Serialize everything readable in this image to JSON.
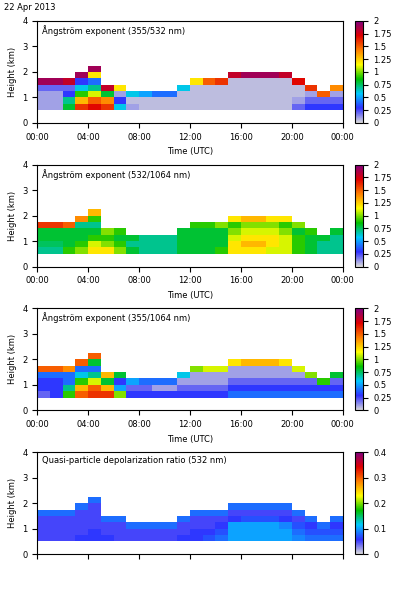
{
  "title": "22 Apr 2013",
  "chart_data": [
    {
      "type": "heatmap",
      "title": "Ångström exponent (355/532 nm)",
      "xlabel": "Time (UTC)",
      "ylabel": "Height (km)",
      "xlim": [
        0,
        24
      ],
      "ylim": [
        0,
        4
      ],
      "xticks": [
        {
          "value": 0,
          "label": "00:00"
        },
        {
          "value": 4,
          "label": "04:00"
        },
        {
          "value": 8,
          "label": "08:00"
        },
        {
          "value": 12,
          "label": "12:00"
        },
        {
          "value": 16,
          "label": "16:00"
        },
        {
          "value": 20,
          "label": "20:00"
        },
        {
          "value": 24,
          "label": "00:00"
        }
      ],
      "yticks": [
        0,
        1,
        2,
        3,
        4
      ],
      "x_edges": [
        0,
        1,
        2,
        3,
        4,
        5,
        6,
        7,
        8,
        9,
        10,
        11,
        12,
        13,
        14,
        15,
        16,
        17,
        18,
        19,
        20,
        21,
        22,
        23,
        24
      ],
      "y_edges": [
        0.5,
        0.75,
        1.0,
        1.25,
        1.5,
        1.75,
        2.0,
        2.25,
        2.5
      ],
      "colorbar": {
        "range": [
          0,
          2
        ],
        "ticks": [
          0,
          0.25,
          0.5,
          0.75,
          1,
          1.25,
          1.5,
          1.75,
          2
        ]
      },
      "cells": [
        [
          0.1,
          0.1,
          0.1,
          0.2,
          1.9,
          null,
          null,
          null
        ],
        [
          0.1,
          0.1,
          0.1,
          0.2,
          1.9,
          null,
          null,
          null
        ],
        [
          0.8,
          0.7,
          0.3,
          0.2,
          1.8,
          null,
          null,
          null
        ],
        [
          1.6,
          1.3,
          0.9,
          0.6,
          0.3,
          1.9,
          null,
          null
        ],
        [
          1.7,
          1.5,
          1.1,
          0.7,
          0.4,
          1.2,
          1.9,
          null
        ],
        [
          1.6,
          1.4,
          0.8,
          1.8,
          null,
          null,
          null,
          null
        ],
        [
          0.6,
          0.3,
          0.1,
          1.2,
          null,
          null,
          null,
          null
        ],
        [
          0.1,
          0.05,
          0.6,
          null,
          null,
          null,
          null,
          null
        ],
        [
          0.05,
          0.05,
          0.5,
          null,
          null,
          null,
          null,
          null
        ],
        [
          0.05,
          0.05,
          0.4,
          null,
          null,
          null,
          null,
          null
        ],
        [
          0.05,
          0.05,
          0.4,
          null,
          null,
          null,
          null,
          null
        ],
        [
          0.05,
          0.05,
          0.05,
          0.6,
          null,
          null,
          null,
          null
        ],
        [
          0.05,
          0.05,
          0.05,
          0.05,
          1.2,
          null,
          null,
          null
        ],
        [
          0.05,
          0.05,
          0.05,
          0.05,
          1.5,
          null,
          null,
          null
        ],
        [
          0.05,
          0.05,
          0.05,
          0.05,
          1.6,
          null,
          null,
          null
        ],
        [
          0.05,
          0.05,
          0.05,
          0.05,
          0.05,
          1.8,
          null,
          null
        ],
        [
          0.05,
          0.05,
          0.05,
          0.05,
          0.05,
          1.9,
          null,
          null
        ],
        [
          0.05,
          0.05,
          0.05,
          0.05,
          0.05,
          1.9,
          null,
          null
        ],
        [
          0.05,
          0.05,
          0.05,
          0.05,
          0.05,
          1.9,
          null,
          null
        ],
        [
          0.05,
          0.05,
          0.05,
          0.05,
          0.05,
          1.8,
          null,
          null
        ],
        [
          0.2,
          0.1,
          0.05,
          0.05,
          1.7,
          null,
          null,
          null
        ],
        [
          0.3,
          0.2,
          0.1,
          1.6,
          null,
          null,
          null,
          null
        ],
        [
          0.3,
          0.2,
          1.5,
          null,
          null,
          null,
          null,
          null
        ],
        [
          0.3,
          0.2,
          0.1,
          1.4,
          null,
          null,
          null,
          null
        ]
      ]
    },
    {
      "type": "heatmap",
      "title": "Ångström exponent (532/1064 nm)",
      "xlabel": "Time (UTC)",
      "ylabel": "Height (km)",
      "xlim": [
        0,
        24
      ],
      "ylim": [
        0,
        4
      ],
      "xticks": [
        {
          "value": 0,
          "label": "00:00"
        },
        {
          "value": 4,
          "label": "04:00"
        },
        {
          "value": 8,
          "label": "08:00"
        },
        {
          "value": 12,
          "label": "12:00"
        },
        {
          "value": 16,
          "label": "16:00"
        },
        {
          "value": 20,
          "label": "20:00"
        },
        {
          "value": 24,
          "label": "00:00"
        }
      ],
      "yticks": [
        0,
        1,
        2,
        3,
        4
      ],
      "x_edges": [
        0,
        1,
        2,
        3,
        4,
        5,
        6,
        7,
        8,
        9,
        10,
        11,
        12,
        13,
        14,
        15,
        16,
        17,
        18,
        19,
        20,
        21,
        22,
        23,
        24
      ],
      "y_edges": [
        0.5,
        0.75,
        1.0,
        1.25,
        1.5,
        1.75,
        2.0,
        2.25,
        2.5
      ],
      "colorbar": {
        "range": [
          0,
          2
        ],
        "ticks": [
          0,
          0.25,
          0.5,
          0.75,
          1,
          1.25,
          1.5,
          1.75,
          2
        ]
      },
      "cells": [
        [
          0.7,
          0.75,
          0.8,
          0.8,
          1.6,
          null,
          null,
          null
        ],
        [
          0.7,
          0.75,
          0.8,
          0.8,
          1.6,
          null,
          null,
          null
        ],
        [
          0.9,
          0.8,
          0.8,
          0.8,
          1.5,
          null,
          null,
          null
        ],
        [
          1.0,
          0.9,
          0.8,
          0.8,
          0.7,
          1.4,
          null,
          null
        ],
        [
          1.2,
          1.1,
          0.9,
          0.8,
          0.7,
          0.9,
          1.3,
          null
        ],
        [
          1.2,
          1.0,
          0.9,
          1.0,
          null,
          null,
          null,
          null
        ],
        [
          1.0,
          0.9,
          0.8,
          0.9,
          null,
          null,
          null,
          null
        ],
        [
          0.8,
          0.7,
          0.8,
          null,
          null,
          null,
          null,
          null
        ],
        [
          0.7,
          0.7,
          0.7,
          null,
          null,
          null,
          null,
          null
        ],
        [
          0.7,
          0.7,
          0.7,
          null,
          null,
          null,
          null,
          null
        ],
        [
          0.7,
          0.7,
          0.7,
          null,
          null,
          null,
          null,
          null
        ],
        [
          0.8,
          0.8,
          0.8,
          0.8,
          null,
          null,
          null,
          null
        ],
        [
          0.8,
          0.8,
          0.8,
          0.8,
          0.9,
          null,
          null,
          null
        ],
        [
          0.8,
          0.8,
          0.8,
          0.8,
          0.9,
          null,
          null,
          null
        ],
        [
          0.9,
          0.8,
          0.8,
          0.8,
          1.0,
          null,
          null,
          null
        ],
        [
          1.2,
          1.2,
          1.1,
          1.0,
          0.9,
          1.2,
          null,
          null
        ],
        [
          1.2,
          1.3,
          1.2,
          1.1,
          1.0,
          1.3,
          null,
          null
        ],
        [
          1.2,
          1.3,
          1.2,
          1.1,
          1.0,
          1.3,
          null,
          null
        ],
        [
          1.1,
          1.2,
          1.2,
          1.1,
          1.0,
          1.2,
          null,
          null
        ],
        [
          1.1,
          1.1,
          1.1,
          1.0,
          0.9,
          1.2,
          null,
          null
        ],
        [
          0.9,
          0.9,
          0.9,
          0.8,
          1.0,
          null,
          null,
          null
        ],
        [
          0.8,
          0.8,
          0.8,
          0.9,
          null,
          null,
          null,
          null
        ],
        [
          0.7,
          0.7,
          0.8,
          null,
          null,
          null,
          null,
          null
        ],
        [
          0.7,
          0.7,
          0.7,
          0.8,
          null,
          null,
          null,
          null
        ]
      ]
    },
    {
      "type": "heatmap",
      "title": "Ångström exponent (355/1064 nm)",
      "xlabel": "Time (UTC)",
      "ylabel": "Height (km)",
      "xlim": [
        0,
        24
      ],
      "ylim": [
        0,
        4
      ],
      "xticks": [
        {
          "value": 0,
          "label": "00:00"
        },
        {
          "value": 4,
          "label": "04:00"
        },
        {
          "value": 8,
          "label": "08:00"
        },
        {
          "value": 12,
          "label": "12:00"
        },
        {
          "value": 16,
          "label": "16:00"
        },
        {
          "value": 20,
          "label": "20:00"
        },
        {
          "value": 24,
          "label": "00:00"
        }
      ],
      "yticks": [
        0,
        1,
        2,
        3,
        4
      ],
      "x_edges": [
        0,
        1,
        2,
        3,
        4,
        5,
        6,
        7,
        8,
        9,
        10,
        11,
        12,
        13,
        14,
        15,
        16,
        17,
        18,
        19,
        20,
        21,
        22,
        23,
        24
      ],
      "y_edges": [
        0.5,
        0.75,
        1.0,
        1.25,
        1.5,
        1.75,
        2.0,
        2.25,
        2.5
      ],
      "colorbar": {
        "range": [
          0,
          2
        ],
        "ticks": [
          0,
          0.25,
          0.5,
          0.75,
          1,
          1.25,
          1.5,
          1.75,
          2
        ]
      },
      "cells": [
        [
          0.2,
          0.3,
          0.3,
          0.4,
          1.5,
          null,
          null,
          null
        ],
        [
          0.3,
          0.3,
          0.3,
          0.4,
          1.5,
          null,
          null,
          null
        ],
        [
          0.9,
          0.7,
          0.4,
          0.4,
          1.4,
          null,
          null,
          null
        ],
        [
          1.5,
          1.3,
          0.9,
          0.6,
          0.4,
          1.5,
          null,
          null
        ],
        [
          1.6,
          1.5,
          1.1,
          0.7,
          0.4,
          0.8,
          1.5,
          null
        ],
        [
          1.6,
          1.3,
          0.8,
          1.3,
          null,
          null,
          null,
          null
        ],
        [
          1.0,
          0.5,
          0.3,
          0.8,
          null,
          null,
          null,
          null
        ],
        [
          0.3,
          0.2,
          0.5,
          null,
          null,
          null,
          null,
          null
        ],
        [
          0.3,
          0.2,
          0.4,
          null,
          null,
          null,
          null,
          null
        ],
        [
          0.3,
          0.1,
          0.4,
          null,
          null,
          null,
          null,
          null
        ],
        [
          0.3,
          0.1,
          0.4,
          null,
          null,
          null,
          null,
          null
        ],
        [
          0.3,
          0.2,
          0.1,
          0.6,
          null,
          null,
          null,
          null
        ],
        [
          0.3,
          0.2,
          0.1,
          0.1,
          1.0,
          null,
          null,
          null
        ],
        [
          0.3,
          0.2,
          0.1,
          0.1,
          1.1,
          null,
          null,
          null
        ],
        [
          0.3,
          0.2,
          0.1,
          0.1,
          1.1,
          null,
          null,
          null
        ],
        [
          0.4,
          0.3,
          0.2,
          0.1,
          0.1,
          1.2,
          null,
          null
        ],
        [
          0.4,
          0.3,
          0.2,
          0.1,
          0.1,
          1.3,
          null,
          null
        ],
        [
          0.4,
          0.3,
          0.2,
          0.1,
          0.1,
          1.3,
          null,
          null
        ],
        [
          0.4,
          0.3,
          0.2,
          0.1,
          0.1,
          1.3,
          null,
          null
        ],
        [
          0.4,
          0.3,
          0.2,
          0.1,
          0.1,
          1.2,
          null,
          null
        ],
        [
          0.4,
          0.3,
          0.2,
          0.1,
          1.1,
          null,
          null,
          null
        ],
        [
          0.4,
          0.3,
          0.2,
          1.0,
          null,
          null,
          null,
          null
        ],
        [
          0.4,
          0.3,
          0.9,
          null,
          null,
          null,
          null,
          null
        ],
        [
          0.4,
          0.3,
          0.2,
          0.8,
          null,
          null,
          null,
          null
        ]
      ]
    },
    {
      "type": "heatmap",
      "title": "Quasi-particle depolarization ratio (532 nm)",
      "ylabel": "Height (km)",
      "tick_labels": "y",
      "xlim": [
        0,
        24
      ],
      "ylim": [
        0,
        4
      ],
      "xticks": [
        0,
        4,
        8,
        12,
        16,
        20,
        24
      ],
      "yticks": [
        0,
        1,
        2,
        3,
        4
      ],
      "x_edges": [
        0,
        1,
        2,
        3,
        4,
        5,
        6,
        7,
        8,
        9,
        10,
        11,
        12,
        13,
        14,
        15,
        16,
        17,
        18,
        19,
        20,
        21,
        22,
        23,
        24
      ],
      "y_edges": [
        0.5,
        0.75,
        1.0,
        1.25,
        1.5,
        1.75,
        2.0,
        2.25,
        2.5
      ],
      "colorbar": {
        "range": [
          0,
          0.4
        ],
        "ticks": [
          0,
          0.1,
          0.2,
          0.3,
          0.4
        ]
      },
      "cells": [
        [
          0.05,
          0.05,
          0.05,
          0.05,
          0.08,
          null,
          null,
          null
        ],
        [
          0.05,
          0.05,
          0.05,
          0.05,
          0.08,
          null,
          null,
          null
        ],
        [
          0.05,
          0.05,
          0.05,
          0.05,
          0.08,
          null,
          null,
          null
        ],
        [
          0.06,
          0.05,
          0.05,
          0.05,
          0.05,
          0.08,
          null,
          null
        ],
        [
          0.06,
          0.06,
          0.05,
          0.05,
          0.05,
          0.05,
          0.08,
          null
        ],
        [
          0.06,
          0.05,
          0.05,
          0.08,
          null,
          null,
          null,
          null
        ],
        [
          0.05,
          0.05,
          0.05,
          0.08,
          null,
          null,
          null,
          null
        ],
        [
          0.05,
          0.05,
          0.08,
          null,
          null,
          null,
          null,
          null
        ],
        [
          0.05,
          0.05,
          0.08,
          null,
          null,
          null,
          null,
          null
        ],
        [
          0.05,
          0.05,
          0.08,
          null,
          null,
          null,
          null,
          null
        ],
        [
          0.05,
          0.05,
          0.08,
          null,
          null,
          null,
          null,
          null
        ],
        [
          0.06,
          0.05,
          0.05,
          0.08,
          null,
          null,
          null,
          null
        ],
        [
          0.06,
          0.06,
          0.05,
          0.05,
          0.08,
          null,
          null,
          null
        ],
        [
          0.07,
          0.06,
          0.05,
          0.05,
          0.08,
          null,
          null,
          null
        ],
        [
          0.08,
          0.07,
          0.06,
          0.05,
          0.08,
          null,
          null,
          null
        ],
        [
          0.1,
          0.1,
          0.1,
          0.06,
          0.05,
          0.08,
          null,
          null
        ],
        [
          0.1,
          0.1,
          0.1,
          0.07,
          0.05,
          0.08,
          null,
          null
        ],
        [
          0.1,
          0.1,
          0.1,
          0.07,
          0.05,
          0.08,
          null,
          null
        ],
        [
          0.1,
          0.1,
          0.1,
          0.07,
          0.05,
          0.08,
          null,
          null
        ],
        [
          0.1,
          0.1,
          0.09,
          0.06,
          0.05,
          0.08,
          null,
          null
        ],
        [
          0.09,
          0.08,
          0.07,
          0.05,
          0.08,
          null,
          null,
          null
        ],
        [
          0.08,
          0.07,
          0.06,
          0.08,
          null,
          null,
          null,
          null
        ],
        [
          0.08,
          0.07,
          0.08,
          null,
          null,
          null,
          null,
          null
        ],
        [
          0.08,
          0.07,
          0.06,
          0.08,
          null,
          null,
          null,
          null
        ]
      ]
    }
  ]
}
